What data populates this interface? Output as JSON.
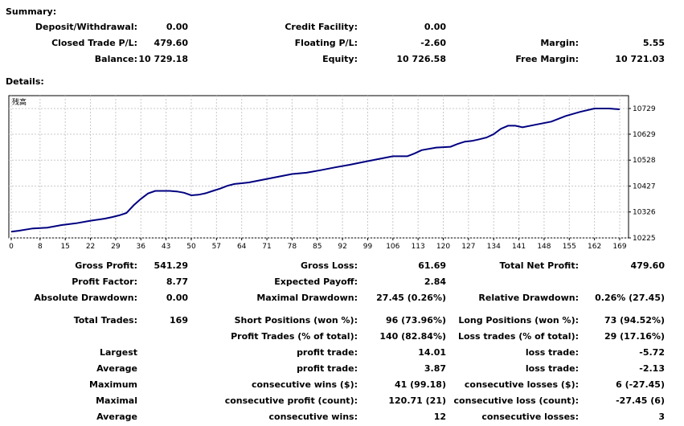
{
  "summary": {
    "title": "Summary:",
    "deposit_label": "Deposit/Withdrawal:",
    "deposit_value": "0.00",
    "credit_label": "Credit Facility:",
    "credit_value": "0.00",
    "closed_label": "Closed Trade P/L:",
    "closed_value": "479.60",
    "floating_label": "Floating P/L:",
    "floating_value": "-2.60",
    "margin_label": "Margin:",
    "margin_value": "5.55",
    "balance_label": "Balance:",
    "balance_value": "10 729.18",
    "equity_label": "Equity:",
    "equity_value": "10 726.58",
    "free_margin_label": "Free Margin:",
    "free_margin_value": "10 721.03"
  },
  "details": {
    "title": "Details:"
  },
  "chart_data": {
    "type": "line",
    "title": "残高",
    "x_ticks": [
      "0",
      "8",
      "15",
      "22",
      "29",
      "36",
      "43",
      "50",
      "57",
      "64",
      "71",
      "78",
      "85",
      "92",
      "99",
      "106",
      "113",
      "120",
      "127",
      "134",
      "141",
      "148",
      "155",
      "162",
      "169"
    ],
    "y_ticks": [
      "10729",
      "10629",
      "10528",
      "10427",
      "10326",
      "10225"
    ],
    "ylim": [
      10225,
      10729
    ],
    "xlim": [
      0,
      169
    ],
    "series": [
      {
        "color": "#000080",
        "x": [
          0,
          2,
          6,
          10,
          14,
          18,
          22,
          26,
          28,
          30,
          32,
          34,
          36,
          38,
          40,
          42,
          44,
          46,
          48,
          50,
          52,
          54,
          56,
          58,
          60,
          62,
          64,
          66,
          70,
          74,
          78,
          82,
          86,
          90,
          94,
          98,
          102,
          106,
          110,
          112,
          114,
          118,
          122,
          124,
          126,
          128,
          130,
          132,
          134,
          136,
          138,
          140,
          142,
          146,
          150,
          154,
          158,
          162,
          166,
          169
        ],
        "y": [
          10249,
          10253,
          10262,
          10265,
          10275,
          10282,
          10292,
          10300,
          10306,
          10313,
          10322,
          10352,
          10377,
          10398,
          10408,
          10408,
          10408,
          10406,
          10401,
          10391,
          10393,
          10399,
          10408,
          10417,
          10428,
          10435,
          10438,
          10441,
          10452,
          10463,
          10474,
          10479,
          10489,
          10500,
          10510,
          10521,
          10532,
          10543,
          10543,
          10554,
          10567,
          10577,
          10580,
          10591,
          10600,
          10603,
          10609,
          10616,
          10629,
          10650,
          10662,
          10662,
          10656,
          10667,
          10678,
          10700,
          10716,
          10729,
          10729,
          10726
        ]
      }
    ]
  },
  "stats": {
    "gross_profit_label": "Gross Profit:",
    "gross_profit_value": "541.29",
    "gross_loss_label": "Gross Loss:",
    "gross_loss_value": "61.69",
    "total_net_label": "Total Net Profit:",
    "total_net_value": "479.60",
    "profit_factor_label": "Profit Factor:",
    "profit_factor_value": "8.77",
    "expected_payoff_label": "Expected Payoff:",
    "expected_payoff_value": "2.84",
    "abs_drawdown_label": "Absolute Drawdown:",
    "abs_drawdown_value": "0.00",
    "max_drawdown_label": "Maximal Drawdown:",
    "max_drawdown_value": "27.45 (0.26%)",
    "rel_drawdown_label": "Relative Drawdown:",
    "rel_drawdown_value": "0.26% (27.45)",
    "total_trades_label": "Total Trades:",
    "total_trades_value": "169",
    "short_label": "Short Positions (won %):",
    "short_value": "96 (73.96%)",
    "long_label": "Long Positions (won %):",
    "long_value": "73 (94.52%)",
    "profit_trades_label": "Profit Trades (% of total):",
    "profit_trades_value": "140 (82.84%)",
    "loss_trades_label": "Loss trades (% of total):",
    "loss_trades_value": "29 (17.16%)",
    "largest_label": "Largest",
    "largest_profit_label": "profit trade:",
    "largest_profit_value": "14.01",
    "largest_loss_label": "loss trade:",
    "largest_loss_value": "-5.72",
    "average_label": "Average",
    "average_profit_label": "profit trade:",
    "average_profit_value": "3.87",
    "average_loss_label": "loss trade:",
    "average_loss_value": "-2.13",
    "maximum_label": "Maximum",
    "max_cons_wins_label": "consecutive wins ($):",
    "max_cons_wins_value": "41 (99.18)",
    "max_cons_losses_label": "consecutive losses ($):",
    "max_cons_losses_value": "6 (-27.45)",
    "maximal_label": "Maximal",
    "maximal_profit_label": "consecutive profit (count):",
    "maximal_profit_value": "120.71 (21)",
    "maximal_loss_label": "consecutive loss (count):",
    "maximal_loss_value": "-27.45 (6)",
    "average2_label": "Average",
    "avg_cons_wins_label": "consecutive wins:",
    "avg_cons_wins_value": "12",
    "avg_cons_losses_label": "consecutive losses:",
    "avg_cons_losses_value": "3"
  }
}
